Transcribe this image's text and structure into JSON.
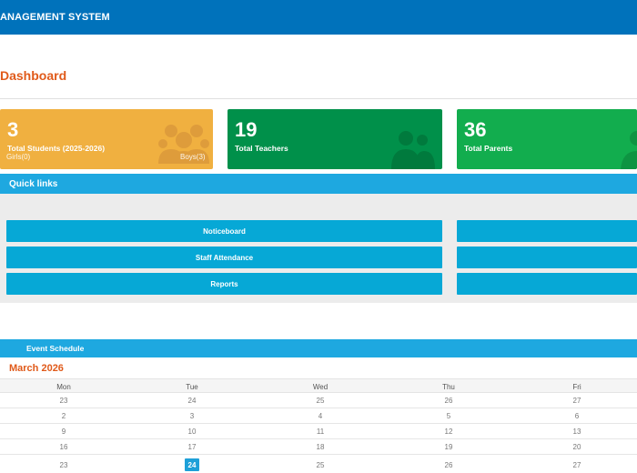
{
  "header": {
    "title": "ANAGEMENT SYSTEM"
  },
  "page": {
    "title": "Dashboard"
  },
  "cards": {
    "students": {
      "count": "3",
      "label": "Total Students (2025-2026)",
      "girls": "Girls(0)",
      "boys": "Boys(3)",
      "color": "#f0b040",
      "icon": "students-group-icon"
    },
    "teachers": {
      "count": "19",
      "label": "Total Teachers",
      "color": "#00904a",
      "icon": "teachers-icon"
    },
    "parents": {
      "count": "36",
      "label": "Total Parents",
      "color": "#12ad4e",
      "icon": "parent-icon"
    }
  },
  "quick_links": {
    "title": "Quick links",
    "buttons": [
      "Noticeboard",
      "Staff Attendance",
      "Reports"
    ]
  },
  "events": {
    "title": "Event Schedule",
    "month": "March 2026",
    "weekdays": [
      "Mon",
      "Tue",
      "Wed",
      "Thu",
      "Fri"
    ],
    "weeks": [
      [
        "23",
        "24",
        "25",
        "26",
        "27"
      ],
      [
        "2",
        "3",
        "4",
        "5",
        "6"
      ],
      [
        "9",
        "10",
        "11",
        "12",
        "13"
      ],
      [
        "16",
        "17",
        "18",
        "19",
        "20"
      ],
      [
        "23",
        "24",
        "25",
        "26",
        "27"
      ]
    ],
    "today": "24"
  }
}
